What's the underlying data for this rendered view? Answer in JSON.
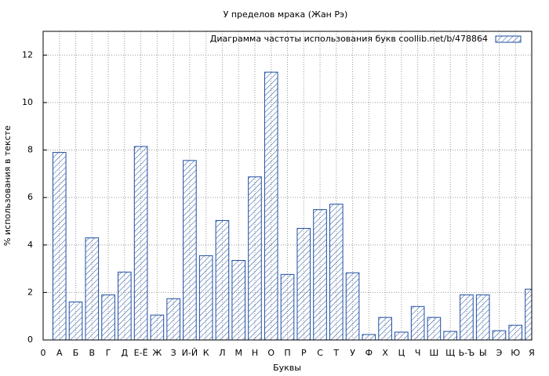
{
  "chart_data": {
    "type": "bar",
    "title": "У пределов мрака (Жан Рэ)",
    "x_label": "Буквы",
    "y_label": "% использования в тексте",
    "categories": [
      "0",
      "А",
      "Б",
      "В",
      "Г",
      "Д",
      "Е-Ё",
      "Ж",
      "З",
      "И-Й",
      "К",
      "Л",
      "М",
      "Н",
      "О",
      "П",
      "Р",
      "С",
      "Т",
      "У",
      "Ф",
      "Х",
      "Ц",
      "Ч",
      "Ш",
      "Щ",
      "Ь-Ъ",
      "Ы",
      "Э",
      "Ю",
      "Я"
    ],
    "series": [
      {
        "name": "Диаграмма частоты использования букв  coollib.net/b/478864",
        "color": "#1f4ea0",
        "values": [
          null,
          7.9,
          1.6,
          4.3,
          1.9,
          2.86,
          8.15,
          1.05,
          1.74,
          7.56,
          3.55,
          5.03,
          3.35,
          6.87,
          11.28,
          2.76,
          4.7,
          5.49,
          5.72,
          2.83,
          0.23,
          0.95,
          0.33,
          1.41,
          0.95,
          0.36,
          1.9,
          1.9,
          0.39,
          0.62,
          2.14
        ]
      }
    ],
    "ylim": [
      0,
      13
    ],
    "yticks": [
      0,
      2,
      4,
      6,
      8,
      10,
      12
    ],
    "grid": true,
    "legend": "top-right"
  }
}
